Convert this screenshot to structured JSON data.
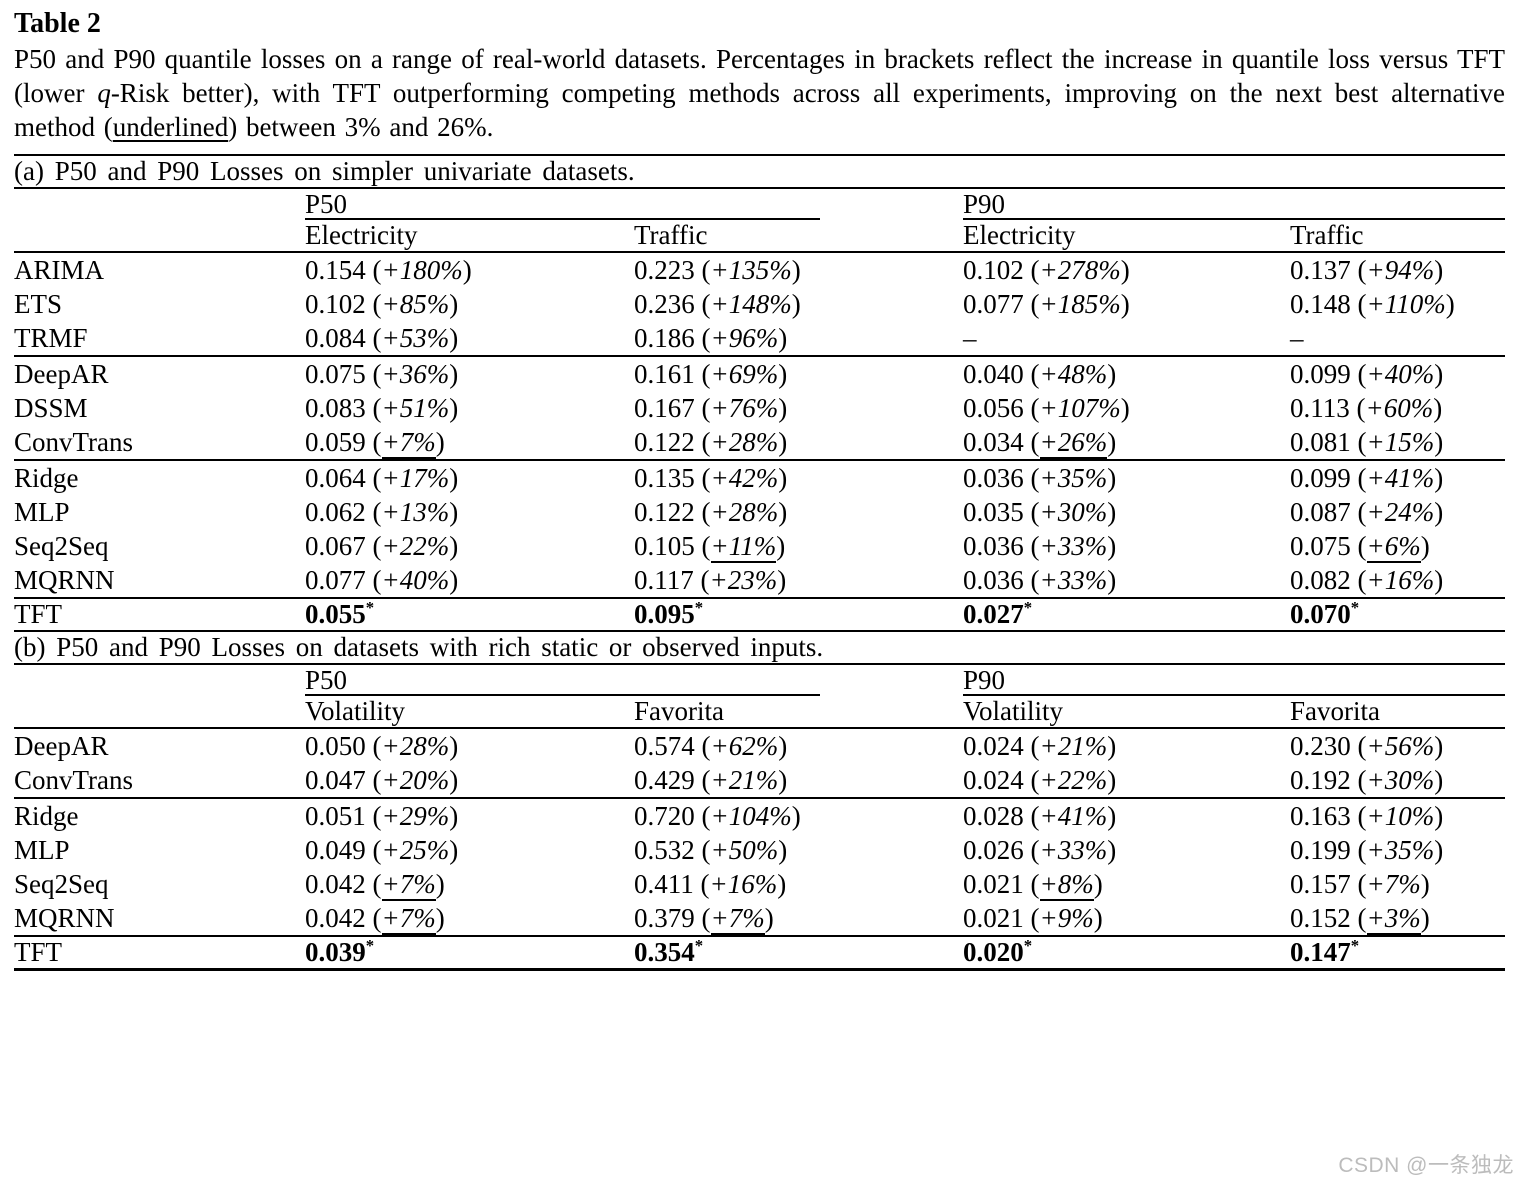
{
  "page": {
    "title": "Table 2",
    "caption": {
      "part1": "P50 and P90 quantile losses on a range of real-world datasets. Percentages in brackets reflect the increase in quantile loss versus TFT (lower ",
      "q_italic": "q",
      "part2": "-Risk better), with TFT outperforming competing methods across all experiments, improving on the next best alternative method (",
      "underlined_word": "underlined",
      "part3": ") between 3% and 26%."
    },
    "watermark": "CSDN @一条独龙"
  },
  "tables": [
    {
      "id": "a",
      "section_label": "(a) P50 and P90 Losses on simpler univariate datasets.",
      "group_headers": [
        "P50",
        "P90"
      ],
      "column_headers": [
        "Electricity",
        "Traffic",
        "Electricity",
        "Traffic"
      ],
      "groups": [
        {
          "rows": [
            {
              "method": "ARIMA",
              "cells": [
                {
                  "value": "0.154",
                  "pct": "+180%"
                },
                {
                  "value": "0.223",
                  "pct": "+135%"
                },
                {
                  "value": "0.102",
                  "pct": "+278%"
                },
                {
                  "value": "0.137",
                  "pct": "+94%"
                }
              ]
            },
            {
              "method": "ETS",
              "cells": [
                {
                  "value": "0.102",
                  "pct": "+85%"
                },
                {
                  "value": "0.236",
                  "pct": "+148%"
                },
                {
                  "value": "0.077",
                  "pct": "+185%"
                },
                {
                  "value": "0.148",
                  "pct": "+110%"
                }
              ]
            },
            {
              "method": "TRMF",
              "cells": [
                {
                  "value": "0.084",
                  "pct": "+53%"
                },
                {
                  "value": "0.186",
                  "pct": "+96%"
                },
                {
                  "dash": "–"
                },
                {
                  "dash": "–"
                }
              ]
            }
          ]
        },
        {
          "rows": [
            {
              "method": "DeepAR",
              "cells": [
                {
                  "value": "0.075",
                  "pct": "+36%"
                },
                {
                  "value": "0.161",
                  "pct": "+69%"
                },
                {
                  "value": "0.040",
                  "pct": "+48%"
                },
                {
                  "value": "0.099",
                  "pct": "+40%"
                }
              ]
            },
            {
              "method": "DSSM",
              "cells": [
                {
                  "value": "0.083",
                  "pct": "+51%"
                },
                {
                  "value": "0.167",
                  "pct": "+76%"
                },
                {
                  "value": "0.056",
                  "pct": "+107%"
                },
                {
                  "value": "0.113",
                  "pct": "+60%"
                }
              ]
            },
            {
              "method": "ConvTrans",
              "cells": [
                {
                  "value": "0.059",
                  "pct": "+7%",
                  "underline": true
                },
                {
                  "value": "0.122",
                  "pct": "+28%"
                },
                {
                  "value": "0.034",
                  "pct": "+26%",
                  "underline": true
                },
                {
                  "value": "0.081",
                  "pct": "+15%"
                }
              ]
            }
          ]
        },
        {
          "rows": [
            {
              "method": "Ridge",
              "cells": [
                {
                  "value": "0.064",
                  "pct": "+17%"
                },
                {
                  "value": "0.135",
                  "pct": "+42%"
                },
                {
                  "value": "0.036",
                  "pct": "+35%"
                },
                {
                  "value": "0.099",
                  "pct": "+41%"
                }
              ]
            },
            {
              "method": "MLP",
              "cells": [
                {
                  "value": "0.062",
                  "pct": "+13%"
                },
                {
                  "value": "0.122",
                  "pct": "+28%"
                },
                {
                  "value": "0.035",
                  "pct": "+30%"
                },
                {
                  "value": "0.087",
                  "pct": "+24%"
                }
              ]
            },
            {
              "method": "Seq2Seq",
              "cells": [
                {
                  "value": "0.067",
                  "pct": "+22%"
                },
                {
                  "value": "0.105",
                  "pct": "+11%",
                  "underline": true
                },
                {
                  "value": "0.036",
                  "pct": "+33%"
                },
                {
                  "value": "0.075",
                  "pct": "+6%",
                  "underline": true
                }
              ]
            },
            {
              "method": "MQRNN",
              "cells": [
                {
                  "value": "0.077",
                  "pct": "+40%"
                },
                {
                  "value": "0.117",
                  "pct": "+23%"
                },
                {
                  "value": "0.036",
                  "pct": "+33%"
                },
                {
                  "value": "0.082",
                  "pct": "+16%"
                }
              ]
            }
          ]
        }
      ],
      "best_row": {
        "method": "TFT",
        "star": "*",
        "values": [
          "0.055",
          "0.095",
          "0.027",
          "0.070"
        ]
      }
    },
    {
      "id": "b",
      "section_label": "(b) P50 and P90 Losses on datasets with rich static or observed inputs.",
      "group_headers": [
        "P50",
        "P90"
      ],
      "column_headers": [
        "Volatility",
        "Favorita",
        "Volatility",
        "Favorita"
      ],
      "groups": [
        {
          "rows": [
            {
              "method": "DeepAR",
              "cells": [
                {
                  "value": "0.050",
                  "pct": "+28%"
                },
                {
                  "value": "0.574",
                  "pct": "+62%"
                },
                {
                  "value": "0.024",
                  "pct": "+21%"
                },
                {
                  "value": "0.230",
                  "pct": "+56%"
                }
              ]
            },
            {
              "method": "ConvTrans",
              "cells": [
                {
                  "value": "0.047",
                  "pct": "+20%"
                },
                {
                  "value": "0.429",
                  "pct": "+21%"
                },
                {
                  "value": "0.024",
                  "pct": "+22%"
                },
                {
                  "value": "0.192",
                  "pct": "+30%"
                }
              ]
            }
          ]
        },
        {
          "rows": [
            {
              "method": "Ridge",
              "cells": [
                {
                  "value": "0.051",
                  "pct": "+29%"
                },
                {
                  "value": "0.720",
                  "pct": "+104%"
                },
                {
                  "value": "0.028",
                  "pct": "+41%"
                },
                {
                  "value": "0.163",
                  "pct": "+10%"
                }
              ]
            },
            {
              "method": "MLP",
              "cells": [
                {
                  "value": "0.049",
                  "pct": "+25%"
                },
                {
                  "value": "0.532",
                  "pct": "+50%"
                },
                {
                  "value": "0.026",
                  "pct": "+33%"
                },
                {
                  "value": "0.199",
                  "pct": "+35%"
                }
              ]
            },
            {
              "method": "Seq2Seq",
              "cells": [
                {
                  "value": "0.042",
                  "pct": "+7%",
                  "underline": true
                },
                {
                  "value": "0.411",
                  "pct": "+16%"
                },
                {
                  "value": "0.021",
                  "pct": "+8%",
                  "underline": true
                },
                {
                  "value": "0.157",
                  "pct": "+7%"
                }
              ]
            },
            {
              "method": "MQRNN",
              "cells": [
                {
                  "value": "0.042",
                  "pct": "+7%",
                  "underline": true
                },
                {
                  "value": "0.379",
                  "pct": "+7%",
                  "underline": true
                },
                {
                  "value": "0.021",
                  "pct": "+9%"
                },
                {
                  "value": "0.152",
                  "pct": "+3%",
                  "underline": true
                }
              ]
            }
          ]
        }
      ],
      "best_row": {
        "method": "TFT",
        "star": "*",
        "values": [
          "0.039",
          "0.354",
          "0.020",
          "0.147"
        ]
      }
    }
  ]
}
